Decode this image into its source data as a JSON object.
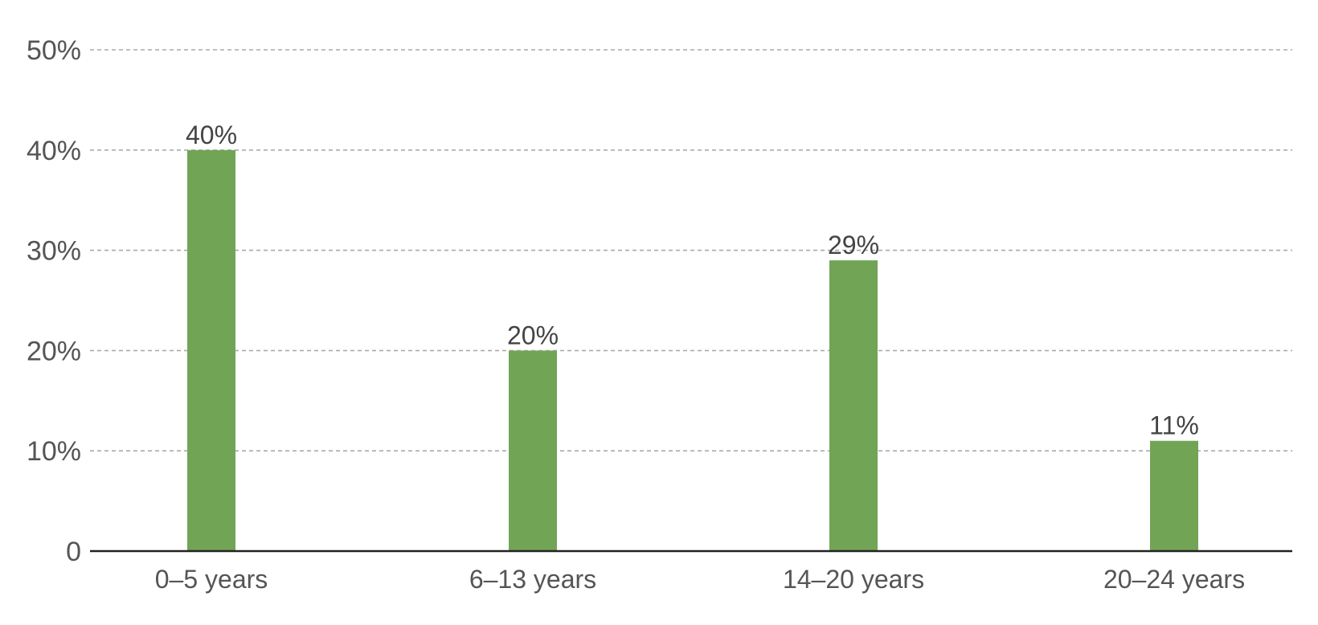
{
  "chart_data": {
    "type": "bar",
    "categories": [
      "0–5 years",
      "6–13 years",
      "14–20 years",
      "20–24 years"
    ],
    "values": [
      40,
      20,
      29,
      11
    ],
    "value_labels": [
      "40%",
      "20%",
      "29%",
      "11%"
    ],
    "yticks": [
      0,
      10,
      20,
      30,
      40,
      50
    ],
    "ytick_labels": [
      "0",
      "10%",
      "20%",
      "30%",
      "40%",
      "50%"
    ],
    "ylim": [
      0,
      50
    ],
    "grid": true,
    "title": "",
    "xlabel": "",
    "ylabel": "",
    "colors": {
      "bar": "#72a456",
      "grid": "#aaaaaa",
      "axis": "#222222",
      "text": "#555555"
    }
  }
}
